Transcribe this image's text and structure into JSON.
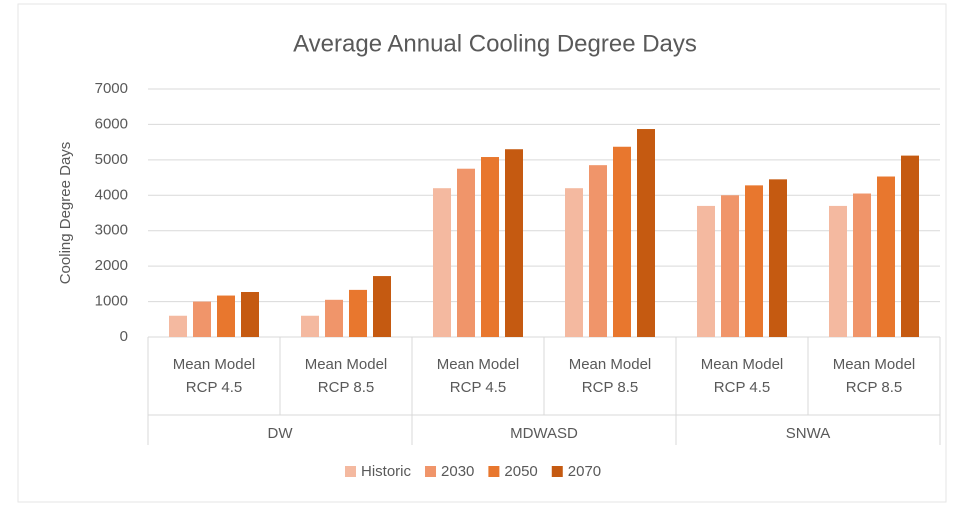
{
  "chart_data": {
    "type": "bar",
    "title": "Average Annual Cooling Degree Days",
    "y_label": "Cooling Degree Days",
    "categories": [
      "Mean Model RCP 4.5",
      "Mean Model RCP 8.5",
      "Mean Model RCP 4.5",
      "Mean Model RCP 8.5",
      "Mean Model RCP 4.5",
      "Mean Model RCP 8.5"
    ],
    "groups": [
      "DW",
      "MDWASD",
      "SNWA"
    ],
    "series": [
      {
        "name": "Historic",
        "color": "#f4b9a0",
        "values": [
          600,
          600,
          4200,
          4200,
          3700,
          3700
        ]
      },
      {
        "name": "2030",
        "color": "#f0956a",
        "values": [
          1000,
          1050,
          4750,
          4850,
          4000,
          4050
        ]
      },
      {
        "name": "2050",
        "color": "#e8772e",
        "values": [
          1170,
          1330,
          5080,
          5370,
          4280,
          4530
        ]
      },
      {
        "name": "2070",
        "color": "#c55a11",
        "values": [
          1270,
          1720,
          5300,
          5870,
          4450,
          5120
        ]
      }
    ],
    "ylim": [
      0,
      7000
    ],
    "yticks": [
      0,
      1000,
      2000,
      3000,
      4000,
      5000,
      6000,
      7000
    ],
    "grid": true,
    "legend": "bottom"
  }
}
